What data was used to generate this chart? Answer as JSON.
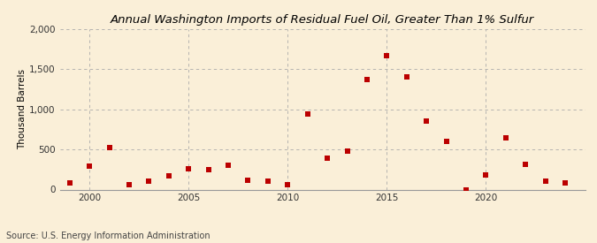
{
  "title": "Annual Washington Imports of Residual Fuel Oil, Greater Than 1% Sulfur",
  "ylabel": "Thousand Barrels",
  "source": "Source: U.S. Energy Information Administration",
  "background_color": "#faefd8",
  "plot_bg_color": "#faefd8",
  "marker_color": "#bb0000",
  "marker": "s",
  "marker_size": 4,
  "years": [
    1999,
    2000,
    2001,
    2002,
    2003,
    2004,
    2005,
    2006,
    2007,
    2008,
    2009,
    2010,
    2011,
    2012,
    2013,
    2014,
    2015,
    2016,
    2017,
    2018,
    2019,
    2020,
    2021,
    2022,
    2023,
    2024
  ],
  "values": [
    80,
    290,
    520,
    65,
    110,
    175,
    260,
    250,
    300,
    120,
    100,
    65,
    945,
    390,
    480,
    1370,
    1670,
    1400,
    850,
    600,
    0,
    185,
    640,
    310,
    100,
    85
  ],
  "ylim": [
    0,
    2000
  ],
  "yticks": [
    0,
    500,
    1000,
    1500,
    2000
  ],
  "ytick_labels": [
    "0",
    "500",
    "1,000",
    "1,500",
    "2,000"
  ],
  "xlim": [
    1998.5,
    2025
  ],
  "xticks": [
    2000,
    2005,
    2010,
    2015,
    2020
  ],
  "title_fontsize": 9.5,
  "ylabel_fontsize": 7.5,
  "tick_fontsize": 7.5,
  "source_fontsize": 7
}
